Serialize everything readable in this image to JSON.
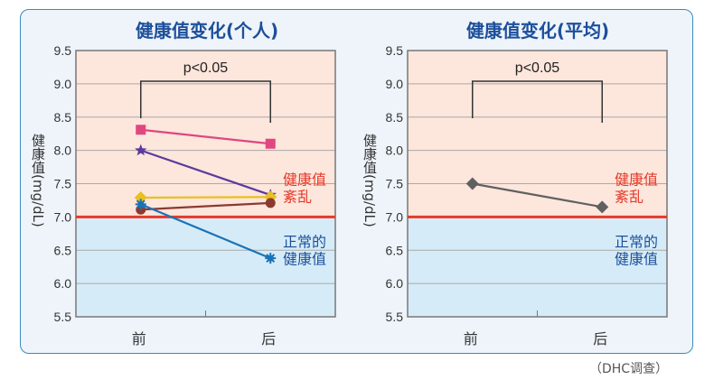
{
  "source_note": "（DHC调查）",
  "chart_data": [
    {
      "type": "line",
      "title": "健康值变化(个人)",
      "ylabel": "健康值(mg/dL)",
      "categories": [
        "前",
        "后"
      ],
      "ylim": [
        5.5,
        9.5
      ],
      "yticks": [
        "5.5",
        "6.0",
        "6.5",
        "7.0",
        "7.5",
        "8.0",
        "8.5",
        "9.0",
        "9.5"
      ],
      "grid": true,
      "threshold": 7.0,
      "significance": "p<0.05",
      "zone_labels": {
        "above": [
          "健康值",
          "紊乱"
        ],
        "below": [
          "正常的",
          "健康值"
        ]
      },
      "series": [
        {
          "values": [
            8.31,
            8.1
          ],
          "color": "#e0467f",
          "marker": "square"
        },
        {
          "values": [
            8.0,
            7.33
          ],
          "color": "#5b3a9e",
          "marker": "star"
        },
        {
          "values": [
            7.29,
            7.3
          ],
          "color": "#e8c020",
          "marker": "diamond"
        },
        {
          "values": [
            7.11,
            7.21
          ],
          "color": "#8b3a30",
          "marker": "circle"
        },
        {
          "values": [
            7.19,
            6.38
          ],
          "color": "#1a73b8",
          "marker": "asterisk"
        }
      ]
    },
    {
      "type": "line",
      "title": "健康值变化(平均)",
      "ylabel": "健康值(mg/dL)",
      "categories": [
        "前",
        "后"
      ],
      "ylim": [
        5.5,
        9.5
      ],
      "yticks": [
        "5.5",
        "6.0",
        "6.5",
        "7.0",
        "7.5",
        "8.0",
        "8.5",
        "9.0",
        "9.5"
      ],
      "grid": true,
      "threshold": 7.0,
      "significance": "p<0.05",
      "zone_labels": {
        "above": [
          "健康值",
          "紊乱"
        ],
        "below": [
          "正常的",
          "健康值"
        ]
      },
      "series": [
        {
          "values": [
            7.5,
            7.15
          ],
          "color": "#606060",
          "marker": "diamond"
        }
      ]
    }
  ],
  "colors": {
    "above_zone": "#fde6dc",
    "below_zone": "#d5ecf8",
    "threshold": "#e53a2a",
    "title": "#1d4f9b",
    "above_label": "#e53a2a",
    "below_label": "#1d4f9b"
  }
}
